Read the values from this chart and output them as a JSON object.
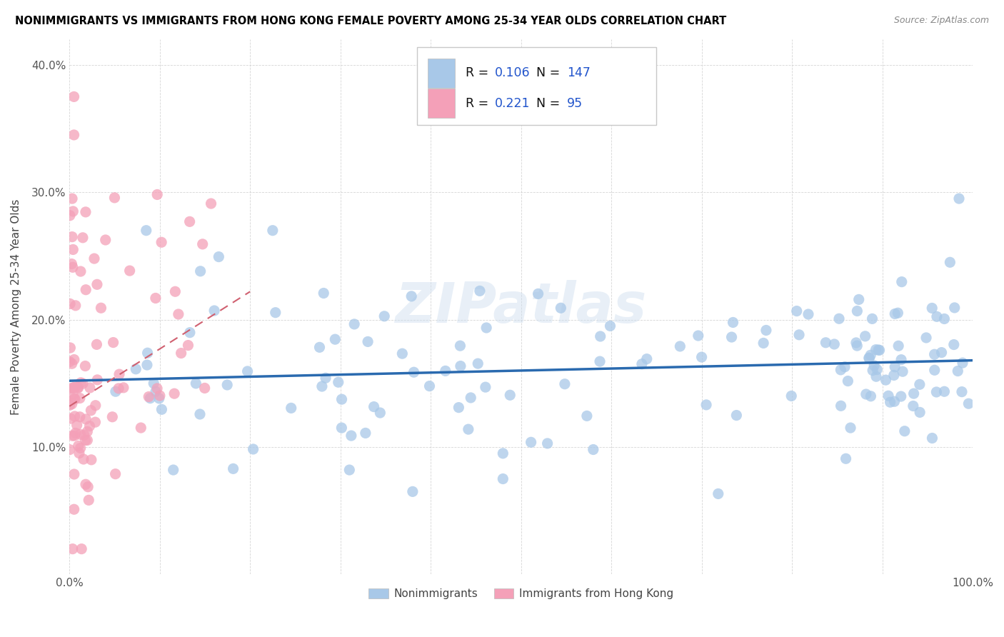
{
  "title": "NONIMMIGRANTS VS IMMIGRANTS FROM HONG KONG FEMALE POVERTY AMONG 25-34 YEAR OLDS CORRELATION CHART",
  "source": "Source: ZipAtlas.com",
  "ylabel": "Female Poverty Among 25-34 Year Olds",
  "xlim": [
    0,
    1.0
  ],
  "ylim": [
    0,
    0.42
  ],
  "blue_color": "#a8c8e8",
  "pink_color": "#f4a0b8",
  "blue_line_color": "#2a6aaf",
  "pink_line_color": "#d06070",
  "watermark": "ZIPatlas",
  "legend_r_blue": "0.106",
  "legend_n_blue": "147",
  "legend_r_pink": "0.221",
  "legend_n_pink": "95",
  "blue_trend_x": [
    0.0,
    1.0
  ],
  "blue_trend_y": [
    0.152,
    0.168
  ],
  "pink_trend_x": [
    0.0,
    0.2
  ],
  "pink_trend_y": [
    0.132,
    0.222
  ]
}
